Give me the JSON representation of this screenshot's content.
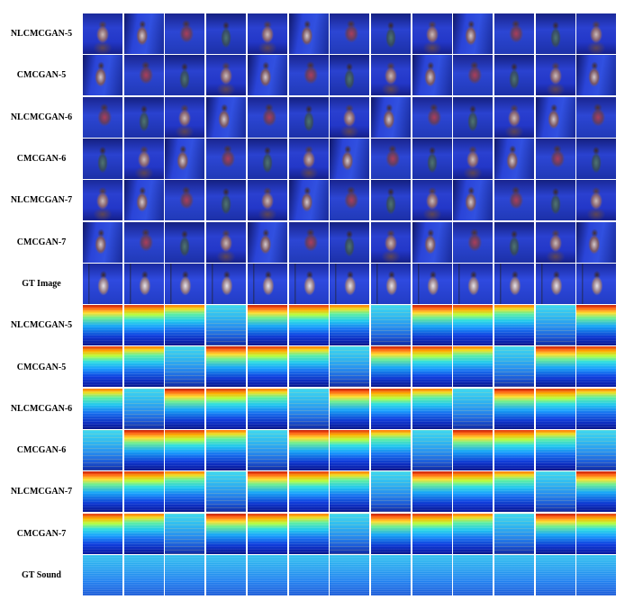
{
  "figure": {
    "image_rows": [
      {
        "label": "NLCMCGAN-5"
      },
      {
        "label": "CMCGAN-5"
      },
      {
        "label": "NLCMCGAN-6"
      },
      {
        "label": "CMCGAN-6"
      },
      {
        "label": "NLCMCGAN-7"
      },
      {
        "label": "CMCGAN-7"
      },
      {
        "label": "GT Image"
      }
    ],
    "sound_rows": [
      {
        "label": "NLCMCGAN-5"
      },
      {
        "label": "CMCGAN-5"
      },
      {
        "label": "NLCMCGAN-6"
      },
      {
        "label": "CMCGAN-6"
      },
      {
        "label": "NLCMCGAN-7"
      },
      {
        "label": "CMCGAN-7"
      },
      {
        "label": "GT Sound"
      }
    ],
    "columns": 13,
    "colors": {
      "backdrop_blue": "#2a42d0",
      "spectrogram_hot": "#e23010",
      "spectrogram_cold": "#0a1aa0"
    }
  }
}
